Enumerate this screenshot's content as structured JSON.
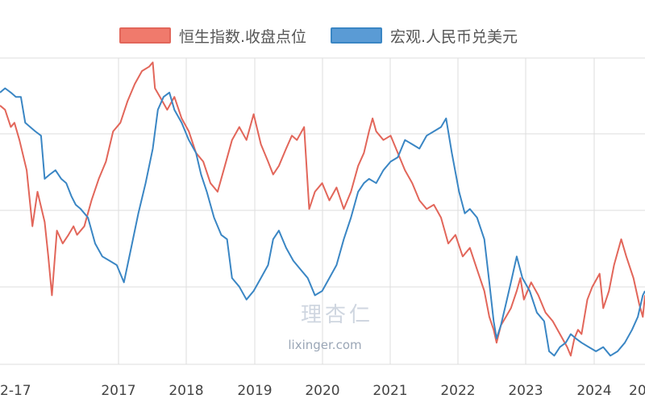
{
  "chart_data": {
    "type": "line",
    "title": "",
    "xlabel": "",
    "ylabel": "",
    "grid": true,
    "legend_position": "top-center",
    "x_ticks": [
      "2-17",
      "2017",
      "2018",
      "2019",
      "2020",
      "2021",
      "2022",
      "2023",
      "2024",
      "20"
    ],
    "series": [
      {
        "name": "恒生指数.收盘点位",
        "color": "#e2665a",
        "fill": "#f07a6c",
        "values": [
          [
            2015.93,
            0.55
          ],
          [
            2016.0,
            0.6
          ],
          [
            2016.08,
            0.8
          ],
          [
            2016.13,
            0.75
          ],
          [
            2016.2,
            0.95
          ],
          [
            2016.3,
            1.3
          ],
          [
            2016.38,
            1.95
          ],
          [
            2016.45,
            1.55
          ],
          [
            2016.55,
            1.9
          ],
          [
            2016.6,
            2.3
          ],
          [
            2016.65,
            2.75
          ],
          [
            2016.72,
            2.0
          ],
          [
            2016.8,
            2.15
          ],
          [
            2016.88,
            2.05
          ],
          [
            2016.95,
            1.95
          ],
          [
            2017.0,
            2.05
          ],
          [
            2017.1,
            1.95
          ],
          [
            2017.2,
            1.65
          ],
          [
            2017.3,
            1.4
          ],
          [
            2017.4,
            1.2
          ],
          [
            2017.5,
            0.85
          ],
          [
            2017.6,
            0.75
          ],
          [
            2017.7,
            0.5
          ],
          [
            2017.8,
            0.3
          ],
          [
            2017.9,
            0.15
          ],
          [
            2018.0,
            0.1
          ],
          [
            2018.05,
            0.05
          ],
          [
            2018.08,
            0.35
          ],
          [
            2018.15,
            0.45
          ],
          [
            2018.25,
            0.6
          ],
          [
            2018.35,
            0.45
          ],
          [
            2018.45,
            0.7
          ],
          [
            2018.55,
            0.85
          ],
          [
            2018.65,
            1.1
          ],
          [
            2018.75,
            1.2
          ],
          [
            2018.85,
            1.45
          ],
          [
            2018.95,
            1.55
          ],
          [
            2019.05,
            1.25
          ],
          [
            2019.15,
            0.95
          ],
          [
            2019.25,
            0.8
          ],
          [
            2019.35,
            0.95
          ],
          [
            2019.45,
            0.65
          ],
          [
            2019.55,
            1.0
          ],
          [
            2019.65,
            1.2
          ],
          [
            2019.72,
            1.35
          ],
          [
            2019.8,
            1.25
          ],
          [
            2019.9,
            1.05
          ],
          [
            2019.98,
            0.9
          ],
          [
            2020.05,
            0.95
          ],
          [
            2020.15,
            0.8
          ],
          [
            2020.22,
            1.75
          ],
          [
            2020.3,
            1.55
          ],
          [
            2020.4,
            1.45
          ],
          [
            2020.5,
            1.65
          ],
          [
            2020.6,
            1.5
          ],
          [
            2020.7,
            1.75
          ],
          [
            2020.8,
            1.55
          ],
          [
            2020.9,
            1.25
          ],
          [
            2020.98,
            1.1
          ],
          [
            2021.05,
            0.85
          ],
          [
            2021.1,
            0.7
          ],
          [
            2021.15,
            0.85
          ],
          [
            2021.25,
            0.95
          ],
          [
            2021.35,
            0.9
          ],
          [
            2021.45,
            1.1
          ],
          [
            2021.55,
            1.3
          ],
          [
            2021.65,
            1.45
          ],
          [
            2021.75,
            1.65
          ],
          [
            2021.85,
            1.75
          ],
          [
            2021.95,
            1.7
          ],
          [
            2022.05,
            1.85
          ],
          [
            2022.15,
            2.15
          ],
          [
            2022.25,
            2.05
          ],
          [
            2022.35,
            2.3
          ],
          [
            2022.45,
            2.2
          ],
          [
            2022.55,
            2.45
          ],
          [
            2022.65,
            2.7
          ],
          [
            2022.72,
            3.0
          ],
          [
            2022.78,
            3.15
          ],
          [
            2022.82,
            3.3
          ],
          [
            2022.88,
            3.1
          ],
          [
            2022.95,
            3.0
          ],
          [
            2023.02,
            2.9
          ],
          [
            2023.1,
            2.7
          ],
          [
            2023.15,
            2.55
          ],
          [
            2023.2,
            2.8
          ],
          [
            2023.3,
            2.6
          ],
          [
            2023.4,
            2.75
          ],
          [
            2023.5,
            2.95
          ],
          [
            2023.6,
            3.05
          ],
          [
            2023.7,
            3.2
          ],
          [
            2023.8,
            3.35
          ],
          [
            2023.85,
            3.45
          ],
          [
            2023.9,
            3.25
          ],
          [
            2023.95,
            3.15
          ],
          [
            2024.0,
            3.2
          ],
          [
            2024.08,
            2.8
          ],
          [
            2024.15,
            2.65
          ],
          [
            2024.25,
            2.5
          ],
          [
            2024.3,
            2.9
          ],
          [
            2024.38,
            2.7
          ],
          [
            2024.45,
            2.4
          ],
          [
            2024.55,
            2.1
          ],
          [
            2024.62,
            2.3
          ],
          [
            2024.72,
            2.55
          ],
          [
            2024.8,
            2.85
          ],
          [
            2024.85,
            3.0
          ],
          [
            2024.88,
            2.75
          ]
        ]
      },
      {
        "name": "宏观.人民币兑美元",
        "color": "#3a86c4",
        "fill": "#5a9bd5",
        "values": [
          [
            2015.93,
            0.4
          ],
          [
            2016.0,
            0.35
          ],
          [
            2016.08,
            0.4
          ],
          [
            2016.15,
            0.45
          ],
          [
            2016.22,
            0.45
          ],
          [
            2016.28,
            0.75
          ],
          [
            2016.35,
            0.8
          ],
          [
            2016.42,
            0.85
          ],
          [
            2016.5,
            0.9
          ],
          [
            2016.55,
            1.4
          ],
          [
            2016.62,
            1.35
          ],
          [
            2016.7,
            1.3
          ],
          [
            2016.78,
            1.4
          ],
          [
            2016.85,
            1.45
          ],
          [
            2016.92,
            1.6
          ],
          [
            2016.98,
            1.7
          ],
          [
            2017.05,
            1.75
          ],
          [
            2017.15,
            1.85
          ],
          [
            2017.25,
            2.15
          ],
          [
            2017.35,
            2.3
          ],
          [
            2017.45,
            2.35
          ],
          [
            2017.55,
            2.4
          ],
          [
            2017.65,
            2.6
          ],
          [
            2017.75,
            2.2
          ],
          [
            2017.85,
            1.8
          ],
          [
            2017.95,
            1.45
          ],
          [
            2018.05,
            1.05
          ],
          [
            2018.12,
            0.6
          ],
          [
            2018.2,
            0.45
          ],
          [
            2018.28,
            0.4
          ],
          [
            2018.35,
            0.6
          ],
          [
            2018.45,
            0.75
          ],
          [
            2018.55,
            0.95
          ],
          [
            2018.65,
            1.1
          ],
          [
            2018.72,
            1.35
          ],
          [
            2018.8,
            1.55
          ],
          [
            2018.9,
            1.85
          ],
          [
            2019.0,
            2.05
          ],
          [
            2019.08,
            2.1
          ],
          [
            2019.15,
            2.55
          ],
          [
            2019.25,
            2.65
          ],
          [
            2019.35,
            2.8
          ],
          [
            2019.45,
            2.7
          ],
          [
            2019.55,
            2.55
          ],
          [
            2019.65,
            2.4
          ],
          [
            2019.72,
            2.1
          ],
          [
            2019.8,
            2.0
          ],
          [
            2019.9,
            2.2
          ],
          [
            2020.0,
            2.35
          ],
          [
            2020.1,
            2.45
          ],
          [
            2020.2,
            2.55
          ],
          [
            2020.3,
            2.75
          ],
          [
            2020.4,
            2.7
          ],
          [
            2020.5,
            2.55
          ],
          [
            2020.6,
            2.4
          ],
          [
            2020.7,
            2.1
          ],
          [
            2020.8,
            1.85
          ],
          [
            2020.9,
            1.55
          ],
          [
            2020.98,
            1.45
          ],
          [
            2021.05,
            1.4
          ],
          [
            2021.15,
            1.45
          ],
          [
            2021.25,
            1.3
          ],
          [
            2021.35,
            1.2
          ],
          [
            2021.45,
            1.15
          ],
          [
            2021.55,
            0.95
          ],
          [
            2021.65,
            1.0
          ],
          [
            2021.75,
            1.05
          ],
          [
            2021.85,
            0.9
          ],
          [
            2021.95,
            0.85
          ],
          [
            2022.05,
            0.8
          ],
          [
            2022.12,
            0.7
          ],
          [
            2022.2,
            1.1
          ],
          [
            2022.3,
            1.55
          ],
          [
            2022.38,
            1.8
          ],
          [
            2022.45,
            1.75
          ],
          [
            2022.55,
            1.85
          ],
          [
            2022.65,
            2.1
          ],
          [
            2022.72,
            2.6
          ],
          [
            2022.78,
            3.05
          ],
          [
            2022.82,
            3.25
          ],
          [
            2022.88,
            3.1
          ],
          [
            2022.95,
            2.85
          ],
          [
            2023.02,
            2.6
          ],
          [
            2023.1,
            2.3
          ],
          [
            2023.18,
            2.55
          ],
          [
            2023.28,
            2.7
          ],
          [
            2023.38,
            2.95
          ],
          [
            2023.48,
            3.05
          ],
          [
            2023.55,
            3.4
          ],
          [
            2023.62,
            3.45
          ],
          [
            2023.7,
            3.35
          ],
          [
            2023.78,
            3.3
          ],
          [
            2023.85,
            3.2
          ],
          [
            2023.92,
            3.25
          ],
          [
            2024.0,
            3.3
          ],
          [
            2024.1,
            3.35
          ],
          [
            2024.2,
            3.4
          ],
          [
            2024.3,
            3.35
          ],
          [
            2024.4,
            3.45
          ],
          [
            2024.5,
            3.4
          ],
          [
            2024.6,
            3.3
          ],
          [
            2024.7,
            3.15
          ],
          [
            2024.78,
            3.0
          ],
          [
            2024.85,
            2.75
          ],
          [
            2024.88,
            2.7
          ]
        ]
      }
    ]
  },
  "legend": [
    {
      "label": "恒生指数.收盘点位"
    },
    {
      "label": "宏观.人民币兑美元"
    }
  ],
  "watermark": {
    "logo": "理杏仁",
    "url": "lixinger.com"
  },
  "colors": {
    "grid": "#dedede",
    "tick_text": "#444444",
    "legend_text": "#555555"
  }
}
